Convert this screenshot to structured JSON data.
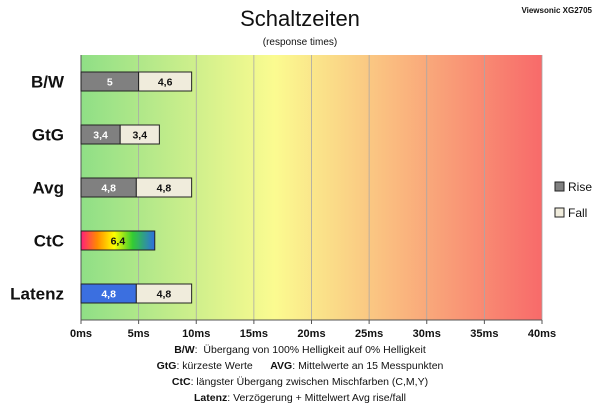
{
  "header": {
    "title": "Schaltzeiten",
    "subtitle": "(response times)",
    "source": "Viewsonic XG2705"
  },
  "chart_data": {
    "type": "bar",
    "orientation": "horizontal",
    "stacked": true,
    "title": "Schaltzeiten",
    "subtitle": "(response times)",
    "categories": [
      "B/W",
      "GtG",
      "Avg",
      "CtC",
      "Latenz"
    ],
    "series": [
      {
        "name": "Rise",
        "values": [
          5,
          3.4,
          4.8,
          6.4,
          4.8
        ],
        "labels": [
          "5",
          "3,4",
          "4,8",
          "6,4",
          "4,8"
        ]
      },
      {
        "name": "Fall",
        "values": [
          4.6,
          3.4,
          4.8,
          null,
          4.8
        ],
        "labels": [
          "4,6",
          "3,4",
          "4,8",
          "",
          "4,8"
        ]
      }
    ],
    "x_ticks": [
      "0ms",
      "5ms",
      "10ms",
      "15ms",
      "20ms",
      "25ms",
      "30ms",
      "35ms",
      "40ms"
    ],
    "xlim": [
      0,
      40
    ],
    "xlabel": "",
    "ylabel": "",
    "grid": true,
    "legend_position": "right",
    "background": "gradient green-yellow-red",
    "colors": {
      "rise": "#808080",
      "fall": "#f0ecdc",
      "latenz_rise": "#3b6fe0",
      "ctc": "rainbow",
      "bg_green": "#8fdf86",
      "bg_yellow": "#fbfb90",
      "bg_red": "#f86a6a"
    }
  },
  "notes": [
    {
      "key": "B/W",
      "sep": ":",
      "text": "Übergang von 100% Helligkeit auf 0% Helligkeit"
    },
    {
      "key": "GtG",
      "sep": ":",
      "text": "kürzeste Werte",
      "key2": "AVG",
      "sep2": ":",
      "text2": "Mittelwerte an 15 Messpunkten"
    },
    {
      "key": "CtC",
      "sep": ":",
      "text": "längster Übergang zwischen Mischfarben (C,M,Y)"
    },
    {
      "key": "Latenz",
      "sep": ":",
      "text": "Verzögerung + Mittelwert Avg rise/fall"
    }
  ]
}
